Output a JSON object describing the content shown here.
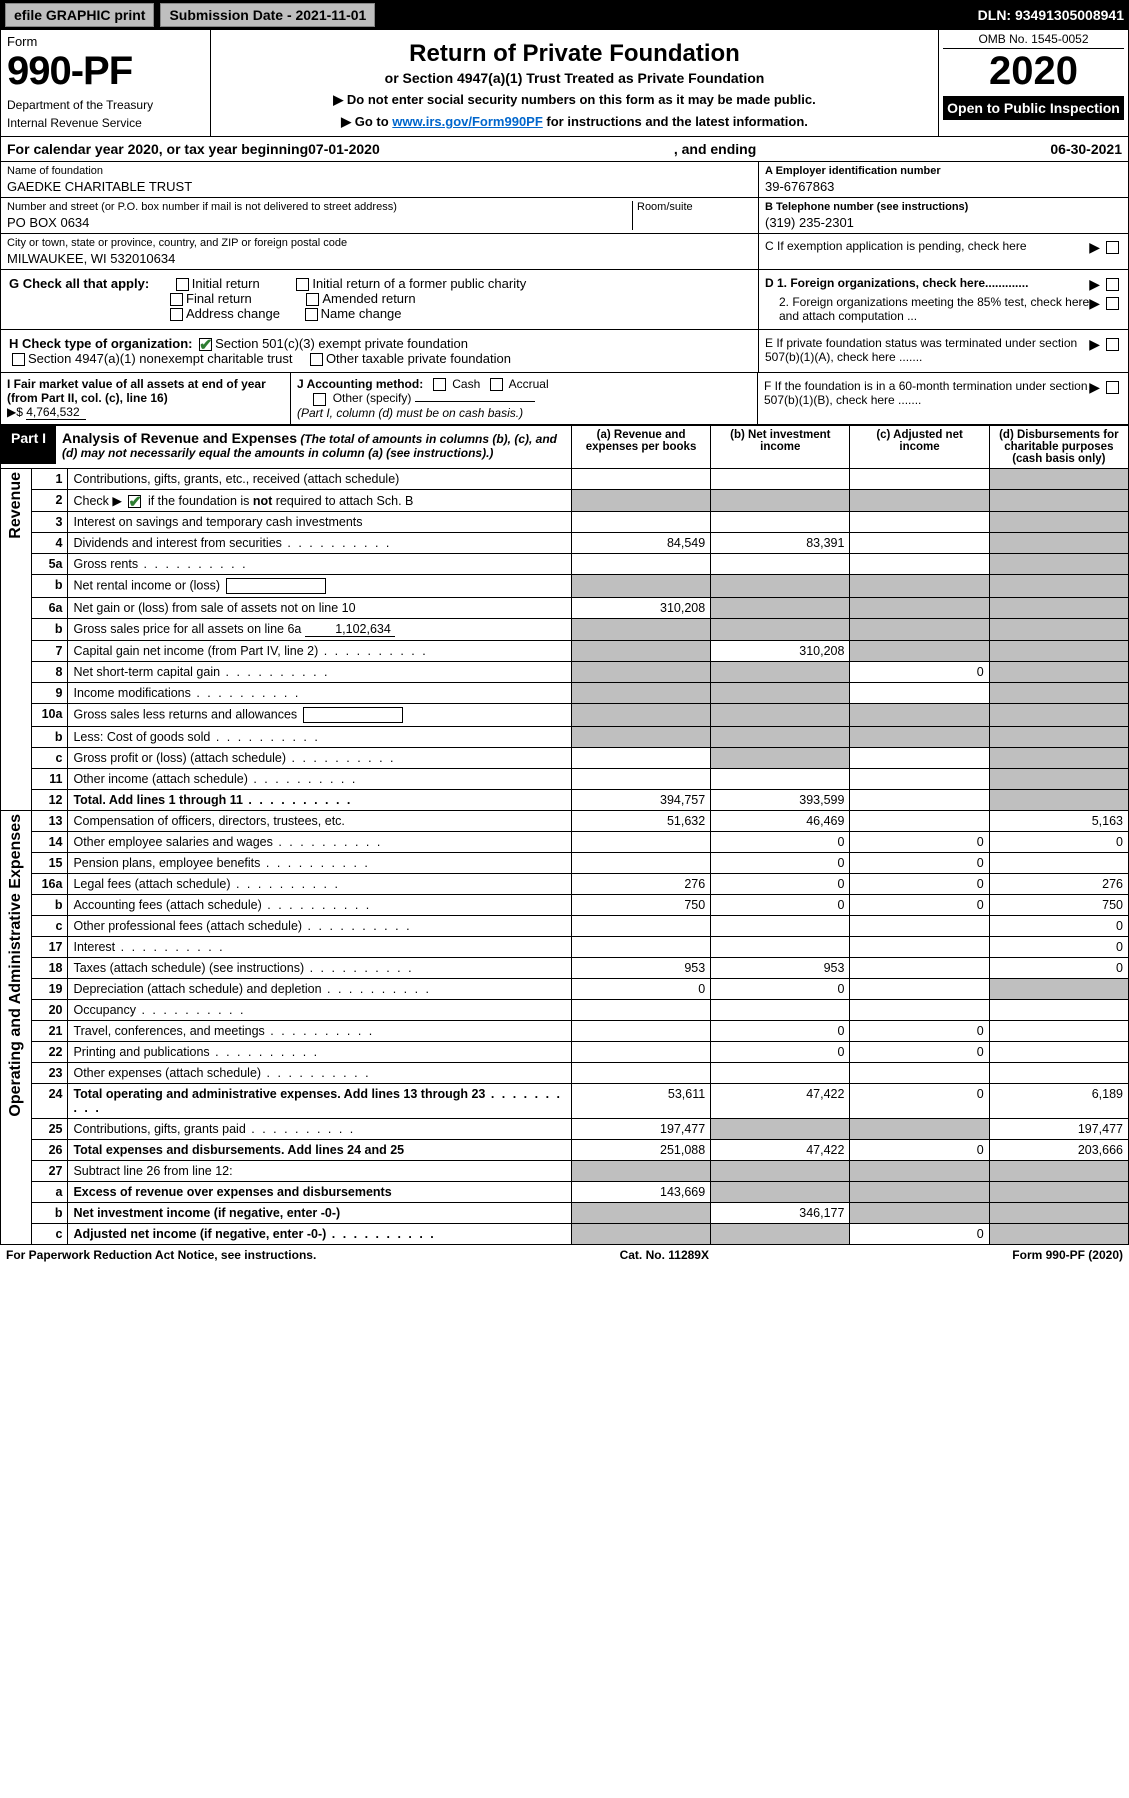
{
  "topbar": {
    "efile": "efile GRAPHIC print",
    "submission_label": "Submission Date - 2021-11-01",
    "dln_label": "DLN: 93491305008941"
  },
  "header": {
    "form_word": "Form",
    "form_number": "990-PF",
    "dept1": "Department of the Treasury",
    "dept2": "Internal Revenue Service",
    "title": "Return of Private Foundation",
    "subtitle": "or Section 4947(a)(1) Trust Treated as Private Foundation",
    "note1": "▶ Do not enter social security numbers on this form as it may be made public.",
    "note2_pre": "▶ Go to ",
    "note2_link": "www.irs.gov/Form990PF",
    "note2_post": " for instructions and the latest information.",
    "omb": "OMB No. 1545-0052",
    "year": "2020",
    "open": "Open to Public Inspection"
  },
  "calyear": {
    "pre": "For calendar year 2020, or tax year beginning ",
    "begin": "07-01-2020",
    "mid": " , and ending ",
    "end": "06-30-2021"
  },
  "id": {
    "name_lbl": "Name of foundation",
    "name_val": "GAEDKE CHARITABLE TRUST",
    "addr_lbl": "Number and street (or P.O. box number if mail is not delivered to street address)",
    "addr_val": "PO BOX 0634",
    "room_lbl": "Room/suite",
    "city_lbl": "City or town, state or province, country, and ZIP or foreign postal code",
    "city_val": "MILWAUKEE, WI  532010634",
    "ein_lbl": "A Employer identification number",
    "ein_val": "39-6767863",
    "tel_lbl": "B Telephone number (see instructions)",
    "tel_val": "(319) 235-2301",
    "c_lbl": "C If exemption application is pending, check here",
    "d1_lbl": "D 1. Foreign organizations, check here.............",
    "d2_lbl": "2. Foreign organizations meeting the 85% test, check here and attach computation ...",
    "e_lbl": "E  If private foundation status was terminated under section 507(b)(1)(A), check here .......",
    "f_lbl": "F  If the foundation is in a 60-month termination under section 507(b)(1)(B), check here ......."
  },
  "g": {
    "label": "G Check all that apply:",
    "opts": [
      "Initial return",
      "Final return",
      "Address change",
      "Initial return of a former public charity",
      "Amended return",
      "Name change"
    ]
  },
  "h": {
    "label": "H Check type of organization:",
    "opt1": "Section 501(c)(3) exempt private foundation",
    "opt2": "Section 4947(a)(1) nonexempt charitable trust",
    "opt3": "Other taxable private foundation"
  },
  "i": {
    "label": "I Fair market value of all assets at end of year (from Part II, col. (c), line 16)",
    "arrow": "▶$",
    "val": "4,764,532"
  },
  "j": {
    "label": "J Accounting method:",
    "opts": [
      "Cash",
      "Accrual"
    ],
    "other": "Other (specify)",
    "note": "(Part I, column (d) must be on cash basis.)"
  },
  "part1": {
    "badge": "Part I",
    "title": "Analysis of Revenue and Expenses",
    "subtitle": "(The total of amounts in columns (b), (c), and (d) may not necessarily equal the amounts in column (a) (see instructions).)",
    "cols": {
      "a": "(a) Revenue and expenses per books",
      "b": "(b) Net investment income",
      "c": "(c) Adjusted net income",
      "d": "(d) Disbursements for charitable purposes (cash basis only)"
    }
  },
  "sides": {
    "rev": "Revenue",
    "exp": "Operating and Administrative Expenses"
  },
  "rows": [
    {
      "n": "1",
      "desc": "Contributions, gifts, grants, etc., received (attach schedule)",
      "a": "",
      "b": "",
      "c": "",
      "d": "",
      "dS": true
    },
    {
      "n": "2",
      "desc": "Check ▶ ☑ if the foundation is not required to attach Sch. B",
      "dots": true,
      "a": "",
      "b": "",
      "c": "",
      "d": "",
      "aS": true,
      "bS": true,
      "cS": true,
      "dS": true,
      "hasCheck": true
    },
    {
      "n": "3",
      "desc": "Interest on savings and temporary cash investments",
      "a": "",
      "b": "",
      "c": "",
      "d": "",
      "dS": true
    },
    {
      "n": "4",
      "desc": "Dividends and interest from securities",
      "dots": true,
      "a": "84,549",
      "b": "83,391",
      "c": "",
      "d": "",
      "dS": true
    },
    {
      "n": "5a",
      "desc": "Gross rents",
      "dots": true,
      "a": "",
      "b": "",
      "c": "",
      "d": "",
      "dS": true
    },
    {
      "n": "b",
      "desc": "Net rental income or (loss)",
      "hasBox": true,
      "a": "",
      "b": "",
      "c": "",
      "d": "",
      "aS": true,
      "bS": true,
      "cS": true,
      "dS": true
    },
    {
      "n": "6a",
      "desc": "Net gain or (loss) from sale of assets not on line 10",
      "a": "310,208",
      "b": "",
      "c": "",
      "d": "",
      "bS": true,
      "cS": true,
      "dS": true
    },
    {
      "n": "b",
      "desc": "Gross sales price for all assets on line 6a",
      "inlineVal": "1,102,634",
      "a": "",
      "b": "",
      "c": "",
      "d": "",
      "aS": true,
      "bS": true,
      "cS": true,
      "dS": true
    },
    {
      "n": "7",
      "desc": "Capital gain net income (from Part IV, line 2)",
      "dots": true,
      "a": "",
      "b": "310,208",
      "c": "",
      "d": "",
      "aS": true,
      "cS": true,
      "dS": true
    },
    {
      "n": "8",
      "desc": "Net short-term capital gain",
      "dots": true,
      "a": "",
      "b": "",
      "c": "0",
      "d": "",
      "aS": true,
      "bS": true,
      "dS": true
    },
    {
      "n": "9",
      "desc": "Income modifications",
      "dots": true,
      "a": "",
      "b": "",
      "c": "",
      "d": "",
      "aS": true,
      "bS": true,
      "dS": true
    },
    {
      "n": "10a",
      "desc": "Gross sales less returns and allowances",
      "hasBox": true,
      "a": "",
      "b": "",
      "c": "",
      "d": "",
      "aS": true,
      "bS": true,
      "cS": true,
      "dS": true
    },
    {
      "n": "b",
      "desc": "Less: Cost of goods sold",
      "dots": true,
      "hasBox": true,
      "a": "",
      "b": "",
      "c": "",
      "d": "",
      "aS": true,
      "bS": true,
      "cS": true,
      "dS": true
    },
    {
      "n": "c",
      "desc": "Gross profit or (loss) (attach schedule)",
      "dots": true,
      "a": "",
      "b": "",
      "c": "",
      "d": "",
      "bS": true,
      "dS": true
    },
    {
      "n": "11",
      "desc": "Other income (attach schedule)",
      "dots": true,
      "a": "",
      "b": "",
      "c": "",
      "d": "",
      "dS": true
    },
    {
      "n": "12",
      "desc": "Total. Add lines 1 through 11",
      "dots": true,
      "bold": true,
      "a": "394,757",
      "b": "393,599",
      "c": "",
      "d": "",
      "dS": true
    }
  ],
  "exprows": [
    {
      "n": "13",
      "desc": "Compensation of officers, directors, trustees, etc.",
      "a": "51,632",
      "b": "46,469",
      "c": "",
      "d": "5,163"
    },
    {
      "n": "14",
      "desc": "Other employee salaries and wages",
      "dots": true,
      "a": "",
      "b": "0",
      "c": "0",
      "d": "0"
    },
    {
      "n": "15",
      "desc": "Pension plans, employee benefits",
      "dots": true,
      "a": "",
      "b": "0",
      "c": "0",
      "d": ""
    },
    {
      "n": "16a",
      "desc": "Legal fees (attach schedule)",
      "dots": true,
      "a": "276",
      "b": "0",
      "c": "0",
      "d": "276"
    },
    {
      "n": "b",
      "desc": "Accounting fees (attach schedule)",
      "dots": true,
      "a": "750",
      "b": "0",
      "c": "0",
      "d": "750"
    },
    {
      "n": "c",
      "desc": "Other professional fees (attach schedule)",
      "dots": true,
      "a": "",
      "b": "",
      "c": "",
      "d": "0"
    },
    {
      "n": "17",
      "desc": "Interest",
      "dots": true,
      "a": "",
      "b": "",
      "c": "",
      "d": "0"
    },
    {
      "n": "18",
      "desc": "Taxes (attach schedule) (see instructions)",
      "dots": true,
      "a": "953",
      "b": "953",
      "c": "",
      "d": "0"
    },
    {
      "n": "19",
      "desc": "Depreciation (attach schedule) and depletion",
      "dots": true,
      "a": "0",
      "b": "0",
      "c": "",
      "d": "",
      "dS": true
    },
    {
      "n": "20",
      "desc": "Occupancy",
      "dots": true,
      "a": "",
      "b": "",
      "c": "",
      "d": ""
    },
    {
      "n": "21",
      "desc": "Travel, conferences, and meetings",
      "dots": true,
      "a": "",
      "b": "0",
      "c": "0",
      "d": ""
    },
    {
      "n": "22",
      "desc": "Printing and publications",
      "dots": true,
      "a": "",
      "b": "0",
      "c": "0",
      "d": ""
    },
    {
      "n": "23",
      "desc": "Other expenses (attach schedule)",
      "dots": true,
      "a": "",
      "b": "",
      "c": "",
      "d": ""
    },
    {
      "n": "24",
      "desc": "Total operating and administrative expenses. Add lines 13 through 23",
      "dots": true,
      "bold": true,
      "a": "53,611",
      "b": "47,422",
      "c": "0",
      "d": "6,189"
    },
    {
      "n": "25",
      "desc": "Contributions, gifts, grants paid",
      "dots": true,
      "a": "197,477",
      "b": "",
      "c": "",
      "d": "197,477",
      "bS": true,
      "cS": true
    },
    {
      "n": "26",
      "desc": "Total expenses and disbursements. Add lines 24 and 25",
      "bold": true,
      "a": "251,088",
      "b": "47,422",
      "c": "0",
      "d": "203,666"
    },
    {
      "n": "27",
      "desc": "Subtract line 26 from line 12:",
      "a": "",
      "b": "",
      "c": "",
      "d": "",
      "aS": true,
      "bS": true,
      "cS": true,
      "dS": true
    },
    {
      "n": "a",
      "desc": "Excess of revenue over expenses and disbursements",
      "bold": true,
      "a": "143,669",
      "b": "",
      "c": "",
      "d": "",
      "bS": true,
      "cS": true,
      "dS": true
    },
    {
      "n": "b",
      "desc": "Net investment income (if negative, enter -0-)",
      "bold": true,
      "a": "",
      "b": "346,177",
      "c": "",
      "d": "",
      "aS": true,
      "cS": true,
      "dS": true
    },
    {
      "n": "c",
      "desc": "Adjusted net income (if negative, enter -0-)",
      "dots": true,
      "bold": true,
      "a": "",
      "b": "",
      "c": "0",
      "d": "",
      "aS": true,
      "bS": true,
      "dS": true
    }
  ],
  "footer": {
    "left": "For Paperwork Reduction Act Notice, see instructions.",
    "mid": "Cat. No. 11289X",
    "right": "Form 990-PF (2020)"
  },
  "colors": {
    "shade": "#bfbfbf",
    "link": "#0066cc",
    "check": "#2e7d32"
  }
}
